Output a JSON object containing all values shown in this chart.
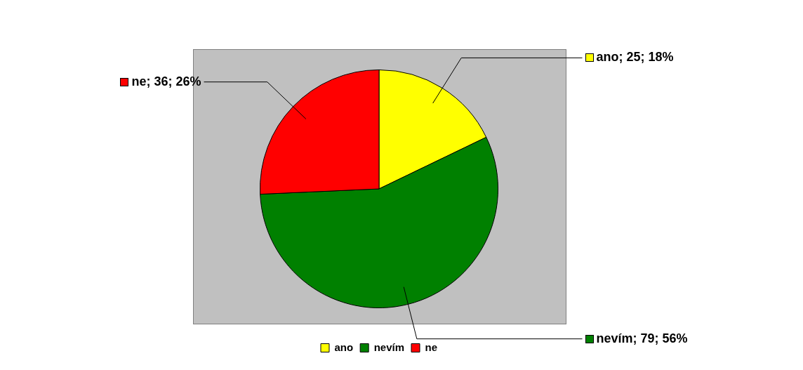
{
  "chart_data": {
    "type": "pie",
    "categories": [
      "ano",
      "nevím",
      "ne"
    ],
    "values": [
      25,
      79,
      36
    ],
    "colors": [
      "#ffff00",
      "#008000",
      "#ff0000"
    ],
    "value_labels": [
      "ano; 25; 18%",
      "nevím; 79; 56%",
      "ne; 36; 26%"
    ],
    "legend": "bottom"
  }
}
